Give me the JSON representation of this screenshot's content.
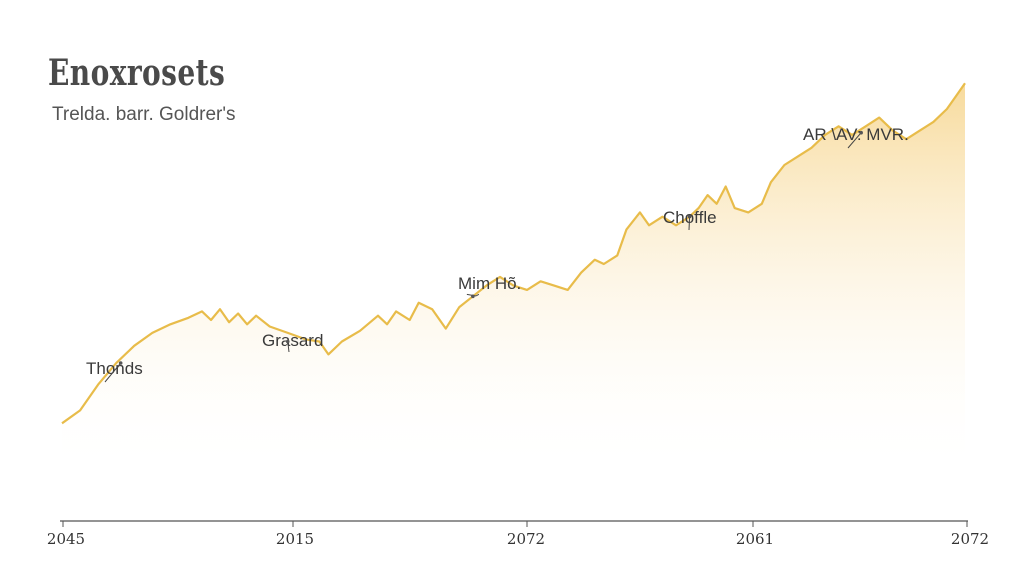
{
  "header": {
    "title": "Enoxrosets",
    "subtitle": "Trelda. barr. Goldrer's"
  },
  "colors": {
    "line": "#e8bc4a",
    "fill_top": "#f6d48a",
    "fill_bottom": "#ffffff",
    "axis": "#555555",
    "text": "#333333"
  },
  "chart_data": {
    "type": "area",
    "title": "Enoxrosets",
    "subtitle": "Trelda. barr. Goldrer's",
    "xlabel": "",
    "ylabel": "",
    "x_ticks": [
      "2045",
      "2015",
      "2072",
      "2061",
      "2072"
    ],
    "x_range": [
      0,
      100
    ],
    "ylim": [
      0,
      100
    ],
    "grid": false,
    "legend": "none",
    "series": [
      {
        "values": [
          [
            0,
            12
          ],
          [
            2,
            15
          ],
          [
            4,
            21
          ],
          [
            6,
            26
          ],
          [
            8,
            30
          ],
          [
            10,
            33
          ],
          [
            12,
            35
          ],
          [
            14,
            36.5
          ],
          [
            15.5,
            38
          ],
          [
            16.5,
            36
          ],
          [
            17.5,
            38.5
          ],
          [
            18.5,
            35.5
          ],
          [
            19.5,
            37.5
          ],
          [
            20.5,
            35
          ],
          [
            21.5,
            37
          ],
          [
            23,
            34.5
          ],
          [
            25,
            33
          ],
          [
            27,
            31.5
          ],
          [
            28.5,
            31
          ],
          [
            29.5,
            28
          ],
          [
            31,
            31
          ],
          [
            33,
            33.5
          ],
          [
            35,
            37
          ],
          [
            36,
            35
          ],
          [
            37,
            38
          ],
          [
            38.5,
            36
          ],
          [
            39.5,
            40
          ],
          [
            41,
            38.5
          ],
          [
            42.5,
            34
          ],
          [
            44,
            39
          ],
          [
            45.5,
            41.5
          ],
          [
            47,
            44
          ],
          [
            48.5,
            46
          ],
          [
            50,
            44
          ],
          [
            51.5,
            43
          ],
          [
            53,
            45
          ],
          [
            54.5,
            44
          ],
          [
            56,
            43
          ],
          [
            57.5,
            47
          ],
          [
            59,
            50
          ],
          [
            60,
            49
          ],
          [
            61.5,
            51
          ],
          [
            62.5,
            57
          ],
          [
            64,
            61
          ],
          [
            65,
            58
          ],
          [
            66.5,
            60
          ],
          [
            68,
            58
          ],
          [
            69.5,
            60
          ],
          [
            70.5,
            62
          ],
          [
            71.5,
            65
          ],
          [
            72.5,
            63
          ],
          [
            73.5,
            67
          ],
          [
            74.5,
            62
          ],
          [
            76,
            61
          ],
          [
            77.5,
            63
          ],
          [
            78.5,
            68
          ],
          [
            80,
            72
          ],
          [
            81.5,
            74
          ],
          [
            83,
            76
          ],
          [
            84.5,
            79
          ],
          [
            86,
            81
          ],
          [
            87.5,
            79
          ],
          [
            89,
            81
          ],
          [
            90.5,
            83
          ],
          [
            92,
            80
          ],
          [
            93.5,
            78
          ],
          [
            95,
            80
          ],
          [
            96.5,
            82
          ],
          [
            98,
            85
          ],
          [
            99,
            88
          ],
          [
            100,
            91
          ]
        ]
      }
    ],
    "annotations": [
      {
        "text": "Thonds",
        "x": 6.5,
        "y": 26
      },
      {
        "text": "Grasard",
        "x": 25,
        "y": 31
      },
      {
        "text": "Mim Hõ.",
        "x": 45.5,
        "y": 41.5
      },
      {
        "text": "Choffle",
        "x": 69.5,
        "y": 60
      },
      {
        "text": "AR \\AV: MVR.",
        "x": 88.5,
        "y": 79.5
      }
    ]
  }
}
